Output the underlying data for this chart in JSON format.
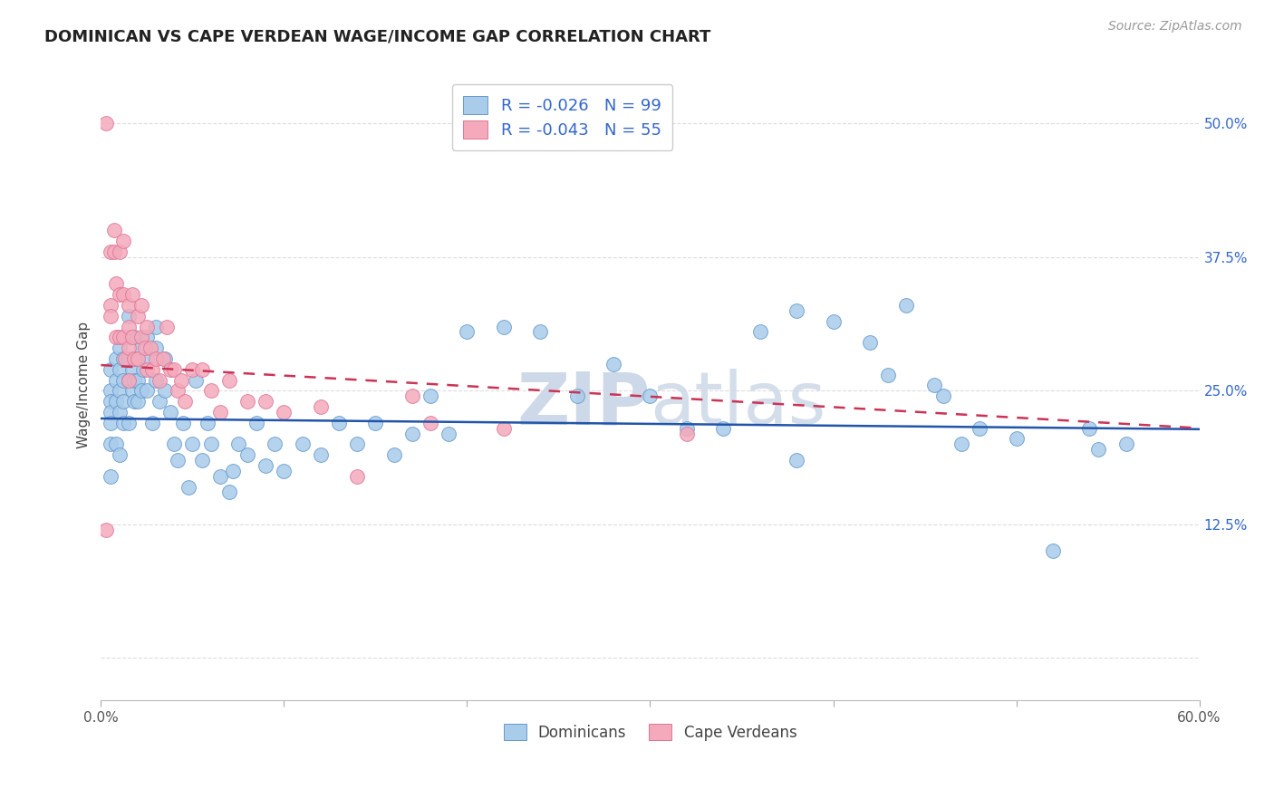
{
  "title": "DOMINICAN VS CAPE VERDEAN WAGE/INCOME GAP CORRELATION CHART",
  "source": "Source: ZipAtlas.com",
  "ylabel": "Wage/Income Gap",
  "yticks": [
    0.0,
    0.125,
    0.25,
    0.375,
    0.5
  ],
  "ytick_labels": [
    "",
    "12.5%",
    "25.0%",
    "37.5%",
    "50.0%"
  ],
  "xlim": [
    0.0,
    0.6
  ],
  "ylim": [
    -0.04,
    0.55
  ],
  "dominicans_R": -0.026,
  "dominicans_N": 99,
  "capeverdeans_R": -0.043,
  "capeverdeans_N": 55,
  "blue_scatter_color": "#A8CCEA",
  "pink_scatter_color": "#F4AABB",
  "blue_edge_color": "#6699CC",
  "pink_edge_color": "#DD7799",
  "blue_line_color": "#2255AA",
  "pink_line_color": "#CC3355",
  "legend_text_color": "#3366CC",
  "watermark_color": "#CDD9E8",
  "background_color": "#FFFFFF",
  "grid_color": "#DDDDDD",
  "title_fontsize": 13,
  "source_fontsize": 10,
  "label_fontsize": 11,
  "tick_fontsize": 11,
  "dom_trend_x0": 0.0,
  "dom_trend_y0": 0.224,
  "dom_trend_x1": 0.6,
  "dom_trend_y1": 0.214,
  "cv_trend_x0": 0.0,
  "cv_trend_y0": 0.274,
  "cv_trend_x1": 0.6,
  "cv_trend_y1": 0.215,
  "dominicans_x": [
    0.005,
    0.005,
    0.005,
    0.005,
    0.005,
    0.005,
    0.005,
    0.008,
    0.008,
    0.008,
    0.008,
    0.01,
    0.01,
    0.01,
    0.01,
    0.01,
    0.012,
    0.012,
    0.012,
    0.012,
    0.015,
    0.015,
    0.015,
    0.015,
    0.015,
    0.017,
    0.017,
    0.018,
    0.018,
    0.018,
    0.018,
    0.02,
    0.02,
    0.02,
    0.022,
    0.022,
    0.023,
    0.025,
    0.025,
    0.025,
    0.028,
    0.03,
    0.03,
    0.03,
    0.032,
    0.035,
    0.035,
    0.038,
    0.04,
    0.042,
    0.045,
    0.048,
    0.05,
    0.052,
    0.055,
    0.058,
    0.06,
    0.065,
    0.07,
    0.072,
    0.075,
    0.08,
    0.085,
    0.09,
    0.095,
    0.1,
    0.11,
    0.12,
    0.13,
    0.14,
    0.15,
    0.16,
    0.17,
    0.18,
    0.19,
    0.2,
    0.22,
    0.24,
    0.26,
    0.28,
    0.3,
    0.32,
    0.34,
    0.36,
    0.38,
    0.4,
    0.42,
    0.44,
    0.46,
    0.48,
    0.5,
    0.52,
    0.54,
    0.56,
    0.455,
    0.47,
    0.43,
    0.545,
    0.38
  ],
  "dominicans_y": [
    0.27,
    0.25,
    0.24,
    0.23,
    0.22,
    0.2,
    0.17,
    0.28,
    0.26,
    0.24,
    0.2,
    0.29,
    0.27,
    0.25,
    0.23,
    0.19,
    0.28,
    0.26,
    0.24,
    0.22,
    0.32,
    0.3,
    0.28,
    0.26,
    0.22,
    0.27,
    0.25,
    0.3,
    0.28,
    0.26,
    0.24,
    0.28,
    0.26,
    0.24,
    0.29,
    0.25,
    0.27,
    0.3,
    0.28,
    0.25,
    0.22,
    0.31,
    0.29,
    0.26,
    0.24,
    0.28,
    0.25,
    0.23,
    0.2,
    0.185,
    0.22,
    0.16,
    0.2,
    0.26,
    0.185,
    0.22,
    0.2,
    0.17,
    0.155,
    0.175,
    0.2,
    0.19,
    0.22,
    0.18,
    0.2,
    0.175,
    0.2,
    0.19,
    0.22,
    0.2,
    0.22,
    0.19,
    0.21,
    0.245,
    0.21,
    0.305,
    0.31,
    0.305,
    0.245,
    0.275,
    0.245,
    0.215,
    0.215,
    0.305,
    0.325,
    0.315,
    0.295,
    0.33,
    0.245,
    0.215,
    0.205,
    0.1,
    0.215,
    0.2,
    0.255,
    0.2,
    0.265,
    0.195,
    0.185
  ],
  "capeverdeans_x": [
    0.003,
    0.003,
    0.005,
    0.005,
    0.005,
    0.007,
    0.007,
    0.008,
    0.008,
    0.01,
    0.01,
    0.01,
    0.012,
    0.012,
    0.012,
    0.013,
    0.015,
    0.015,
    0.015,
    0.015,
    0.017,
    0.017,
    0.018,
    0.02,
    0.02,
    0.022,
    0.022,
    0.024,
    0.025,
    0.025,
    0.027,
    0.028,
    0.03,
    0.032,
    0.034,
    0.036,
    0.038,
    0.04,
    0.042,
    0.044,
    0.046,
    0.05,
    0.055,
    0.06,
    0.065,
    0.07,
    0.08,
    0.09,
    0.1,
    0.12,
    0.14,
    0.17,
    0.18,
    0.22,
    0.32
  ],
  "capeverdeans_y": [
    0.5,
    0.12,
    0.38,
    0.33,
    0.32,
    0.4,
    0.38,
    0.35,
    0.3,
    0.38,
    0.34,
    0.3,
    0.39,
    0.34,
    0.3,
    0.28,
    0.33,
    0.31,
    0.29,
    0.26,
    0.34,
    0.3,
    0.28,
    0.32,
    0.28,
    0.33,
    0.3,
    0.29,
    0.31,
    0.27,
    0.29,
    0.27,
    0.28,
    0.26,
    0.28,
    0.31,
    0.27,
    0.27,
    0.25,
    0.26,
    0.24,
    0.27,
    0.27,
    0.25,
    0.23,
    0.26,
    0.24,
    0.24,
    0.23,
    0.235,
    0.17,
    0.245,
    0.22,
    0.215,
    0.21
  ]
}
